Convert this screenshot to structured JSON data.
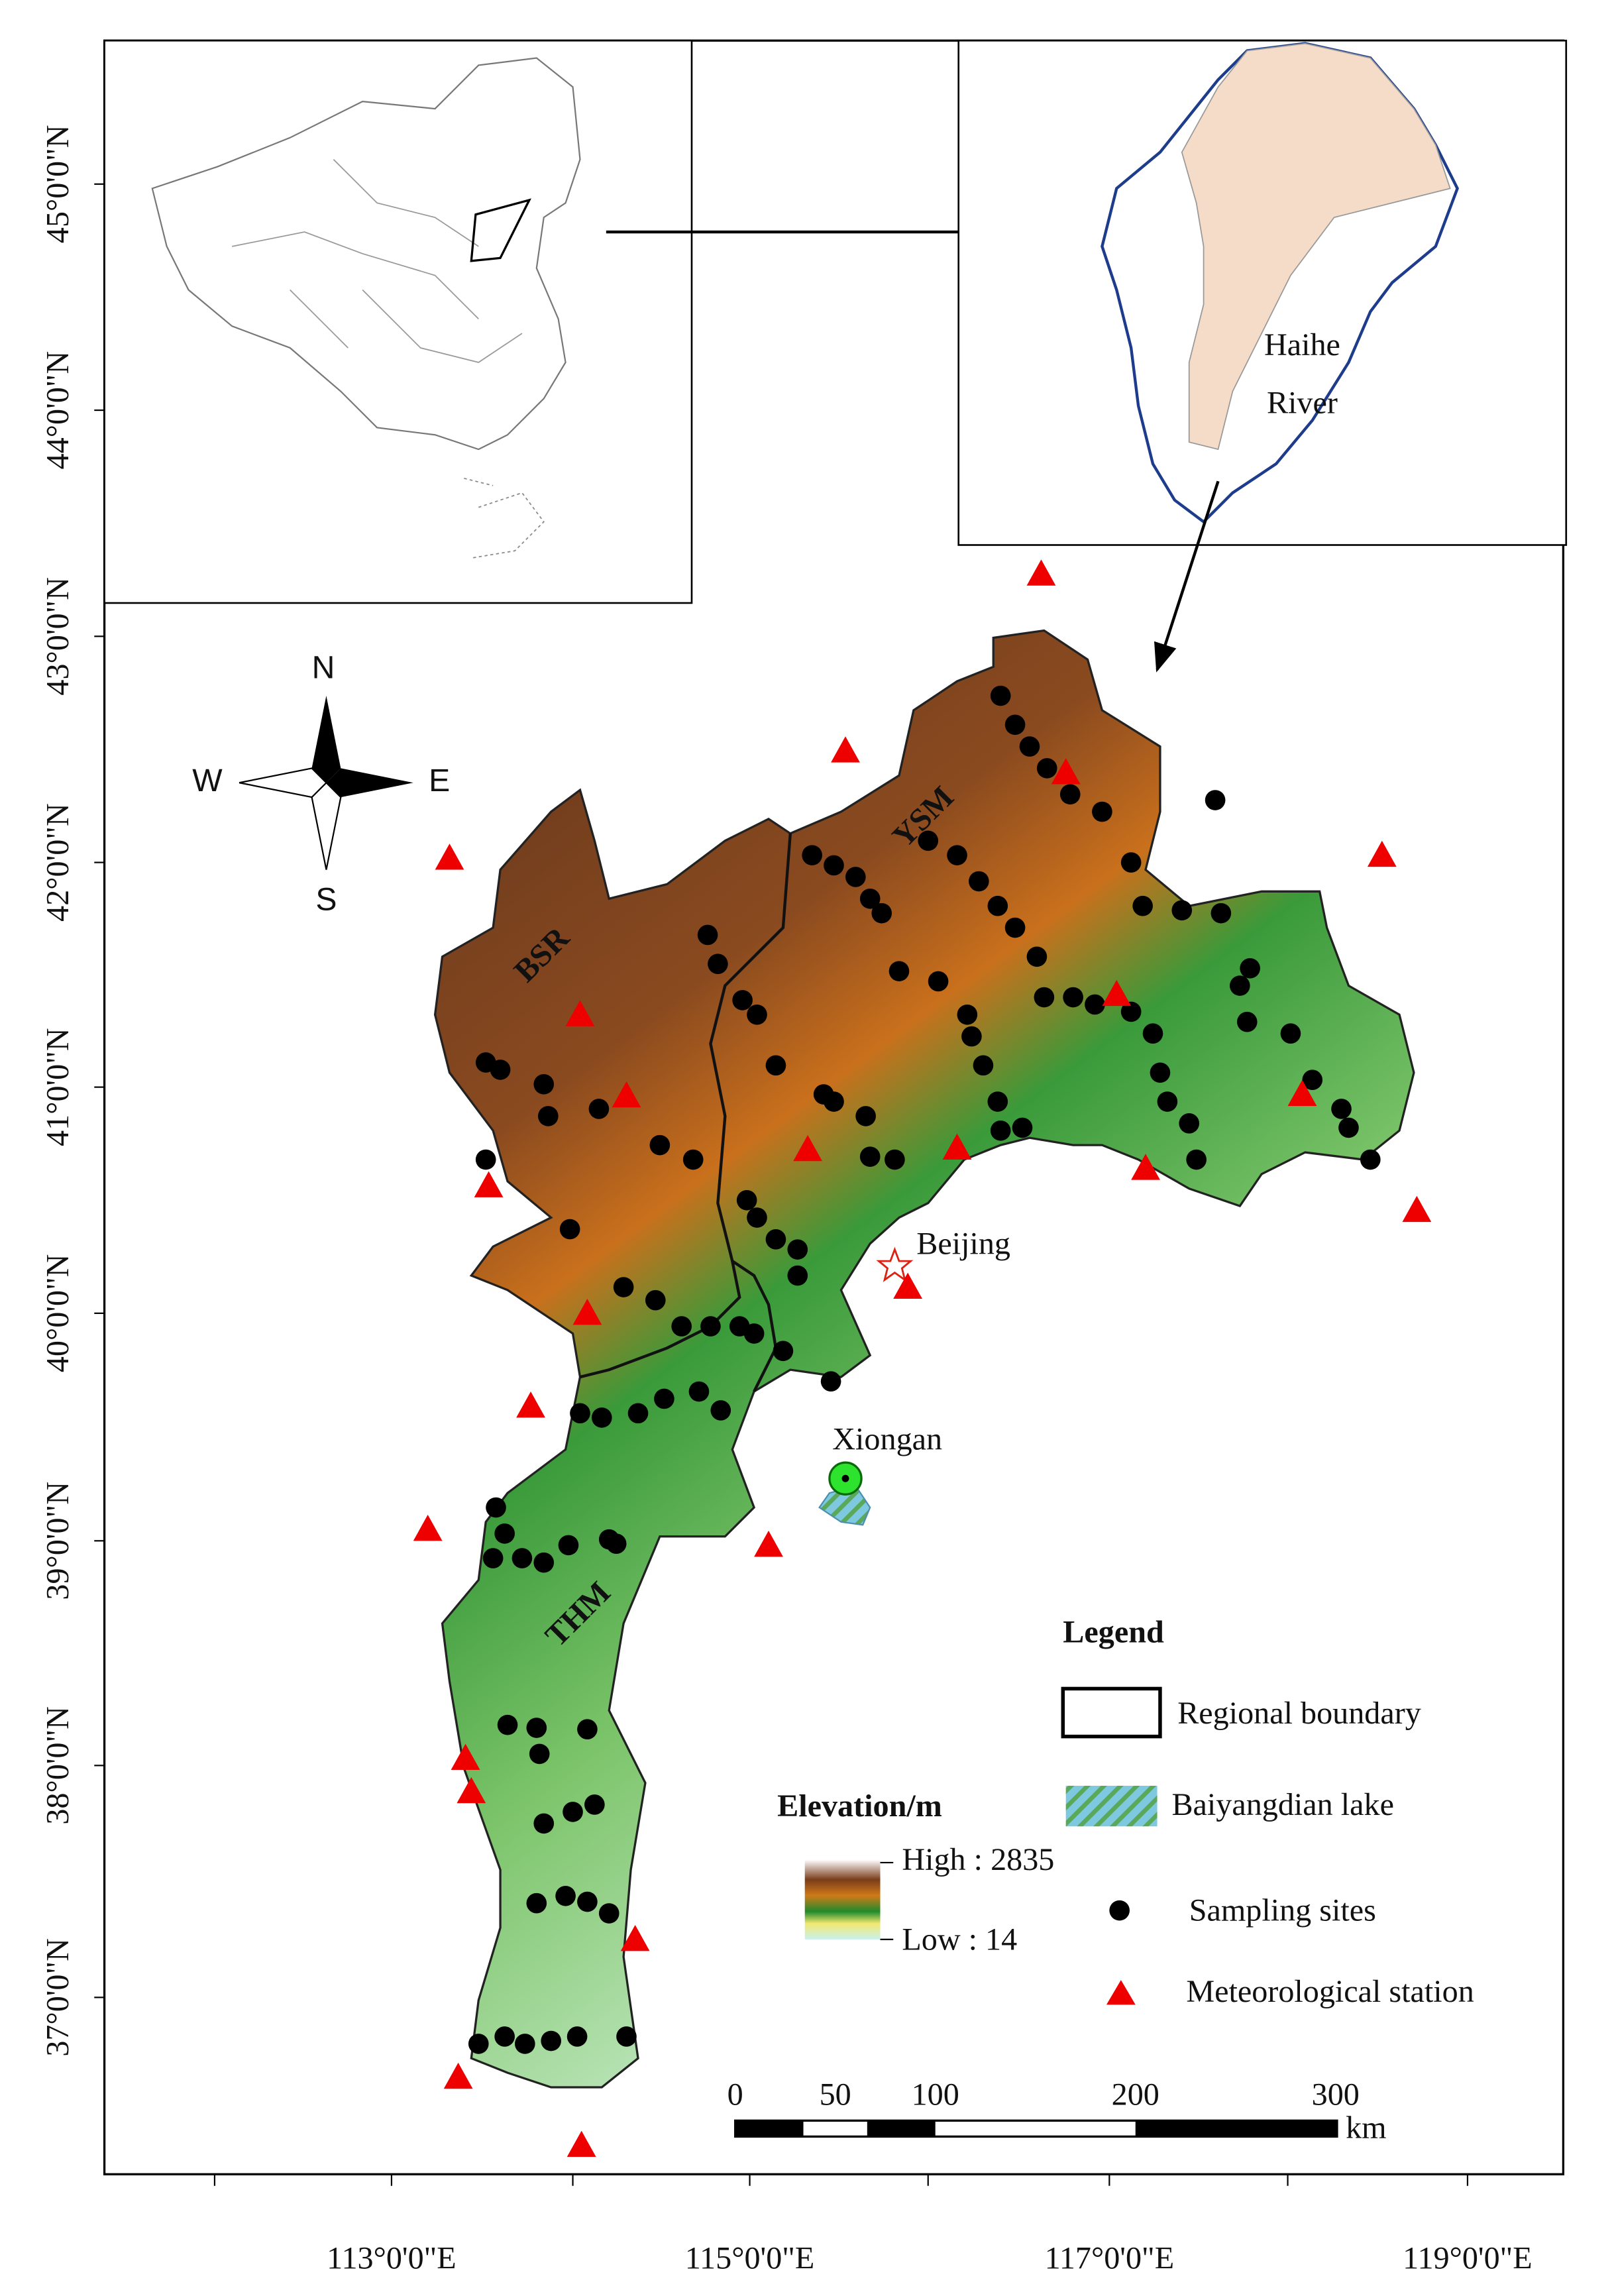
{
  "axes": {
    "latitude_labels": [
      "45°0'0\"N",
      "44°0'0\"N",
      "43°0'0\"N",
      "42°0'0\"N",
      "41°0'0\"N",
      "40°0'0\"N",
      "39°0'0\"N",
      "38°0'0\"N",
      "37°0'0\"N"
    ],
    "longitude_labels": [
      "113°0'0\"E",
      "115°0'0\"E",
      "117°0'0\"E",
      "119°0'0\"E"
    ]
  },
  "inset": {
    "region_label_line1": "Haihe",
    "region_label_line2": "River"
  },
  "compass": {
    "north": "N",
    "west": "W",
    "east": "E",
    "south": "S"
  },
  "map_labels": {
    "regions": [
      "BSR",
      "YSM",
      "THM"
    ],
    "cities": [
      "Beijing",
      "Xiongan"
    ]
  },
  "legend": {
    "title": "Legend",
    "items": [
      "Regional boundary",
      "Baiyangdian lake",
      "Sampling sites",
      "Meteorological station"
    ]
  },
  "elevation": {
    "title": "Elevation/m",
    "high": "High : 2835",
    "low": "Low : 14"
  },
  "scale_bar": {
    "labels": [
      "0",
      "50",
      "100",
      "200",
      "300"
    ],
    "unit": "km"
  }
}
